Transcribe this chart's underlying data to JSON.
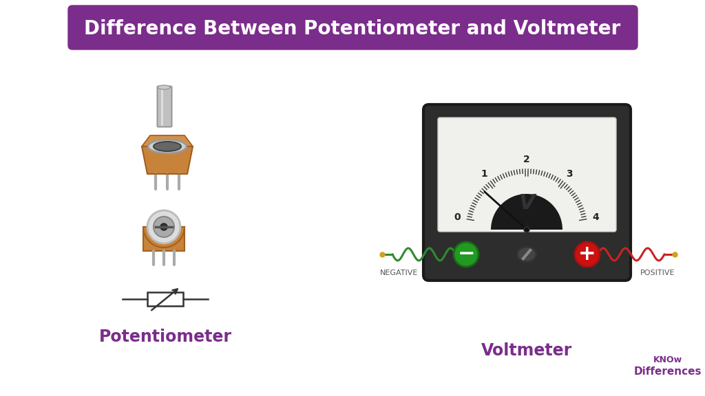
{
  "title": "Difference Between Potentiometer and Voltmeter",
  "title_bg_color": "#7B2D8B",
  "title_text_color": "#FFFFFF",
  "bg_color": "#FFFFFF",
  "potentiometer_label": "Potentiometer",
  "voltmeter_label": "Voltmeter",
  "label_color": "#7B2D8B",
  "brand_line1": "KNOw",
  "brand_line2": "Differences",
  "brand_color": "#7B2D8B",
  "negative_label": "NEGATIVE",
  "positive_label": "POSITIVE",
  "meter_numbers": [
    "0",
    "1",
    "2",
    "3",
    "4"
  ],
  "meter_v_label": "V",
  "pot_body_color": "#C8833A",
  "pot_body_edge": "#A06020",
  "pot_shaft_color": "#BBBBBB",
  "pot_ring_color": "#CCCCCC",
  "wire_neg_color": "#2E8B2E",
  "wire_pos_color": "#CC2222",
  "wire_end_color": "#D4A020",
  "meter_frame_color": "#2D2D2D",
  "meter_face_color": "#F0F0EC",
  "meter_bottom_color": "#3A3A3A",
  "neg_terminal_color": "#229922",
  "pos_terminal_color": "#CC1111"
}
